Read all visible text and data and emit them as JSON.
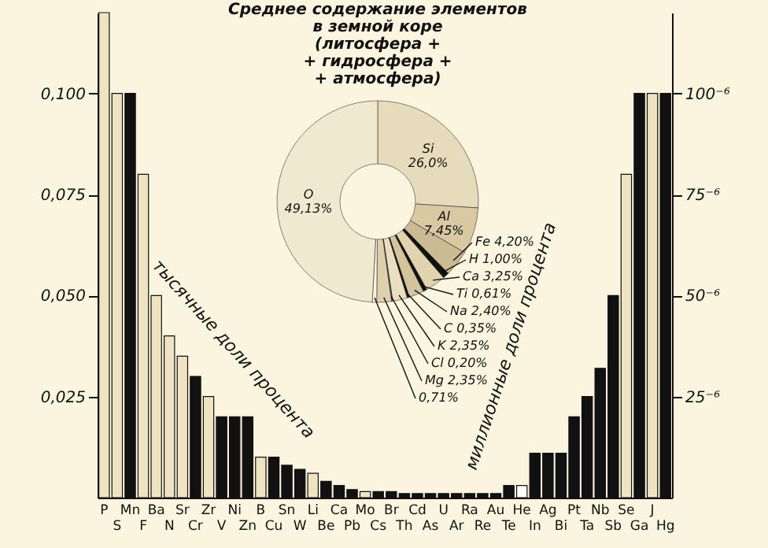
{
  "chart_data": [
    {
      "type": "bar",
      "categories": [
        "P",
        "S",
        "Mn",
        "F",
        "Ba",
        "N",
        "Sr",
        "Cr",
        "Zr",
        "V",
        "Ni",
        "Zn",
        "B",
        "Cu",
        "Sn",
        "W",
        "Li",
        "Be",
        "Ca",
        "Pb",
        "Mo",
        "Cs",
        "Br",
        "Th",
        "Cd",
        "As",
        "U",
        "Ar",
        "Ra",
        "Re",
        "Au",
        "Te",
        "He",
        "In",
        "Ag",
        "Bi",
        "Pt",
        "Ta",
        "Nb",
        "Sb",
        "Se",
        "Ga",
        "J",
        "Hg"
      ],
      "series": [
        {
          "values": [
            0.12,
            0.1,
            0.1,
            0.08,
            0.05,
            0.04,
            0.035,
            0.03,
            0.025,
            0.02,
            0.02,
            0.02,
            0.01,
            0.01,
            0.008,
            0.007,
            0.006,
            0.004,
            0.003,
            0.002,
            0.0015,
            0.0015,
            0.0015,
            0.001,
            0.001,
            0.001,
            0.001,
            0.001,
            null,
            null,
            null,
            null,
            null,
            null,
            null,
            null,
            null,
            null,
            null,
            null,
            null,
            null,
            null,
            null
          ],
          "colors": [
            "#efe4c2",
            "#efe4c2",
            "#111111",
            "#efe4c2",
            "#efe4c2",
            "#efe4c2",
            "#efe4c2",
            "#111111",
            "#efe4c2",
            "#111111",
            "#111111",
            "#111111",
            "#efe4c2",
            "#111111",
            "#111111",
            "#111111",
            "#efe4c2",
            "#111111",
            "#111111",
            "#111111",
            "#efe4c2",
            "#111111",
            "#111111",
            "#111111",
            "#111111",
            "#111111",
            "#111111",
            "#111111",
            null,
            null,
            null,
            null,
            null,
            null,
            null,
            null,
            null,
            null,
            null,
            null,
            null,
            null,
            null,
            null
          ]
        },
        {
          "axis": "y2",
          "values": [
            null,
            null,
            null,
            null,
            null,
            null,
            null,
            null,
            null,
            null,
            null,
            null,
            null,
            null,
            null,
            null,
            null,
            null,
            null,
            null,
            null,
            null,
            null,
            null,
            null,
            null,
            null,
            null,
            1,
            1,
            1,
            3,
            3,
            11,
            11,
            11,
            20,
            25,
            32,
            50,
            80,
            100,
            100,
            100
          ],
          "colors": [
            null,
            null,
            null,
            null,
            null,
            null,
            null,
            null,
            null,
            null,
            null,
            null,
            null,
            null,
            null,
            null,
            null,
            null,
            null,
            null,
            null,
            null,
            null,
            null,
            null,
            null,
            null,
            null,
            "#111111",
            "#111111",
            "#111111",
            "#111111",
            "#ffffff",
            "#111111",
            "#111111",
            "#111111",
            "#111111",
            "#111111",
            "#111111",
            "#111111",
            "#efe4c2",
            "#111111",
            "#efe4c2",
            "#111111"
          ]
        }
      ],
      "ylim": [
        0,
        0.12
      ],
      "yticks": [
        {
          "value": 0.025,
          "label": "0,025"
        },
        {
          "value": 0.05,
          "label": "0,050"
        },
        {
          "value": 0.075,
          "label": "0,075"
        },
        {
          "value": 0.1,
          "label": "0,100"
        }
      ],
      "y2lim": [
        0,
        120
      ],
      "y2ticks": [
        {
          "value": 25,
          "label": "25⁻⁶"
        },
        {
          "value": 50,
          "label": "50⁻⁶"
        },
        {
          "value": 75,
          "label": "75⁻⁶"
        },
        {
          "value": 100,
          "label": "100⁻⁶"
        }
      ],
      "annotations": [
        "тысячные доли процента",
        "миллионные доли процента"
      ]
    },
    {
      "type": "donut",
      "title": "Среднее содержание элементов\nв земной коре\n(литосфера +\n+ гидросфера +\n+ атмосфера)",
      "categories": [
        "Si",
        "Al",
        "Fe",
        "H",
        "Ca",
        "Ti",
        "Na",
        "C",
        "K",
        "Cl",
        "Mg",
        null,
        "O"
      ],
      "values": [
        26.0,
        7.45,
        4.2,
        1.0,
        3.25,
        0.61,
        2.4,
        0.35,
        2.35,
        0.2,
        2.35,
        0.71,
        49.13
      ],
      "value_labels": [
        "26,0%",
        "7,45%",
        "4,20%",
        "1,00%",
        "3,25%",
        "0,61%",
        "2,40%",
        "0,35%",
        "2,35%",
        "0,20%",
        "2,35%",
        "0,71%",
        "49,13%"
      ],
      "colors": [
        "#e6dcbc",
        "#d8c9a2",
        "#cbbb92",
        "#111111",
        "#e0d3ae",
        "#111111",
        "#d3c49c",
        "#111111",
        "#e9dec0",
        "#555555",
        "#ddd0aa",
        "#f8f2de",
        "#f1e9cf"
      ]
    }
  ]
}
